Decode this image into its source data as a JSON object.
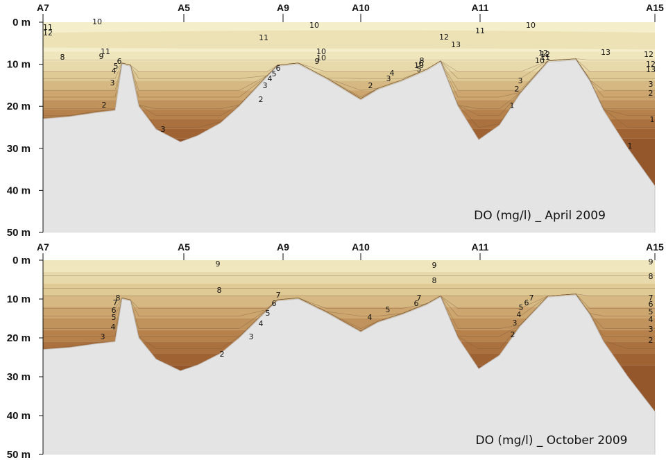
{
  "chart_data": [
    {
      "type": "contour",
      "title": "DO (mg/l) _ April 2009",
      "stations": [
        "A7",
        "A5",
        "A9",
        "A10",
        "A11",
        "A15"
      ],
      "y_ticks": [
        "0 m",
        "10 m",
        "20 m",
        "30 m",
        "40 m",
        "50 m"
      ],
      "ylim": [
        0,
        50
      ],
      "contour_levels": [
        1,
        2,
        3,
        4,
        5,
        6,
        7,
        8,
        9,
        10,
        11,
        12,
        13
      ],
      "contour_labels": [
        "10",
        "11",
        "12",
        "10",
        "11",
        "10",
        "12",
        "13",
        "11",
        "10",
        "13",
        "12",
        "8",
        "9",
        "11",
        "10",
        "6",
        "5",
        "4",
        "3",
        "2",
        "3",
        "3",
        "4",
        "5",
        "6",
        "2",
        "9",
        "10",
        "12",
        "3",
        "4",
        "5",
        "2",
        "6",
        "8",
        "12",
        "13",
        "2",
        "3",
        "1",
        "12",
        "11",
        "10",
        "3",
        "2",
        "1",
        "1"
      ],
      "series": [
        {
          "name": "bottom_profile_depth_m",
          "values": [
            23,
            22.5,
            21.5,
            21,
            10,
            10.5,
            20,
            25.5,
            28.5,
            27,
            24,
            20,
            13,
            10.5,
            10,
            13.5,
            18.5,
            16,
            14,
            11.5,
            9.5,
            20,
            28,
            24.5,
            17,
            9.5,
            9,
            14,
            21,
            30,
            39
          ]
        }
      ]
    },
    {
      "type": "contour",
      "title": "DO (mg/l) _ October 2009",
      "stations": [
        "A7",
        "A5",
        "A9",
        "A10",
        "A11",
        "A15"
      ],
      "y_ticks": [
        "0 m",
        "10 m",
        "20 m",
        "30 m",
        "40 m",
        "50 m"
      ],
      "ylim": [
        0,
        50
      ],
      "contour_levels": [
        2,
        3,
        4,
        5,
        6,
        7,
        8,
        9
      ],
      "contour_labels": [
        "9",
        "9",
        "9",
        "8",
        "8",
        "8",
        "8",
        "7",
        "6",
        "5",
        "4",
        "3",
        "7",
        "6",
        "5",
        "4",
        "3",
        "2",
        "4",
        "5",
        "6",
        "7",
        "7",
        "6",
        "5",
        "4",
        "3",
        "2",
        "7",
        "6",
        "5",
        "4",
        "3",
        "2"
      ],
      "series": [
        {
          "name": "bottom_profile_depth_m",
          "values": [
            23,
            22.5,
            21.5,
            21,
            10,
            10.5,
            20,
            25.5,
            28.5,
            27,
            24,
            20,
            13,
            10.5,
            10,
            13.5,
            18.5,
            16,
            14,
            11.5,
            9.5,
            20,
            28,
            24.5,
            17,
            9.5,
            9,
            14,
            21,
            30,
            39
          ]
        }
      ]
    }
  ]
}
